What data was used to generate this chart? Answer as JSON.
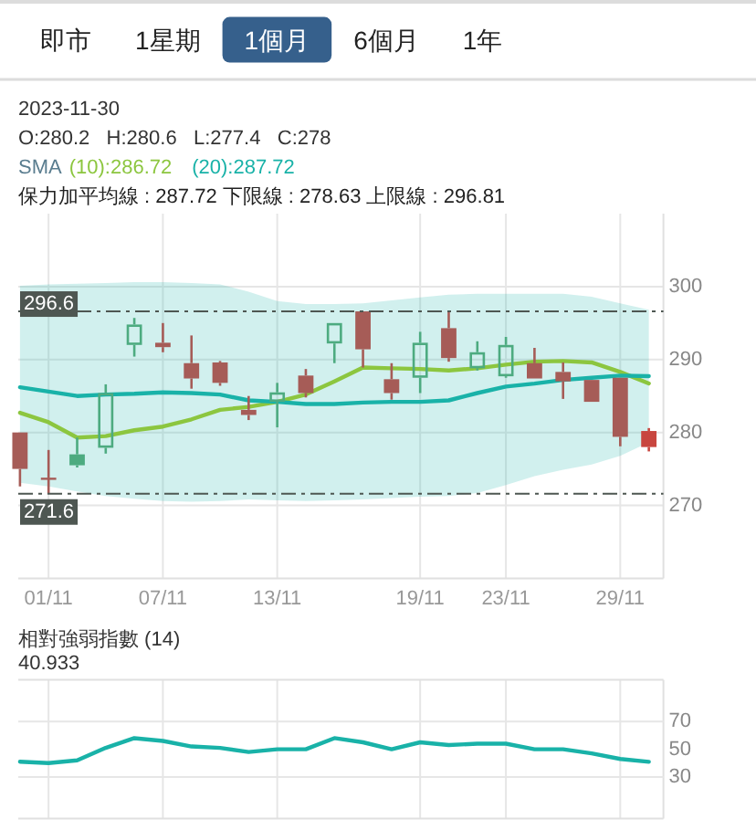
{
  "chart_data": [
    {
      "type": "other",
      "categories": [
        "即市",
        "1星期",
        "1個月",
        "6個月",
        "1年"
      ],
      "colors": [
        null,
        null,
        "#36608c",
        null,
        null
      ]
    },
    {
      "type": "candlestick",
      "title": "2023-11-30",
      "subtitle": "O:280.2   H:280.6   L:277.4   C:278",
      "legend": "top left",
      "legend_title": "SMA",
      "annotations": [
        "保力加平均線 : 287.72 下限線 : 278.63 上限線 : 296.81"
      ],
      "categories": [
        null,
        "01/11",
        null,
        null,
        null,
        "07/11",
        null,
        null,
        null,
        "13/11",
        null,
        null,
        null,
        null,
        "19/11",
        null,
        null,
        "23/11",
        null,
        null,
        null,
        "29/11",
        null
      ],
      "ohlc": [
        [
          280.0,
          280.0,
          272.6,
          275.0
        ],
        [
          273.8,
          277.6,
          271.6,
          273.8
        ],
        [
          277.0,
          279.3,
          275.2,
          275.5
        ],
        [
          277.9,
          286.6,
          277.1,
          285.4
        ],
        [
          292.0,
          295.7,
          290.4,
          294.8
        ],
        [
          291.7,
          295.0,
          291.0,
          292.3
        ],
        [
          289.5,
          293.3,
          286.0,
          287.4
        ],
        [
          289.6,
          289.8,
          286.4,
          286.8
        ],
        [
          283.1,
          285.0,
          281.7,
          282.4
        ],
        [
          284.2,
          286.8,
          280.7,
          285.5
        ],
        [
          287.8,
          288.7,
          284.8,
          285.4
        ],
        [
          292.2,
          295.0,
          289.5,
          295.0
        ],
        [
          296.6,
          296.6,
          288.9,
          291.4
        ],
        [
          287.3,
          289.5,
          284.5,
          285.4
        ],
        [
          287.5,
          293.8,
          285.4,
          292.3
        ],
        [
          294.3,
          296.5,
          289.7,
          290.2
        ],
        [
          288.8,
          292.5,
          288.5,
          291.0
        ],
        [
          287.7,
          293.1,
          287.5,
          292.0
        ],
        [
          289.5,
          291.6,
          287.4,
          287.4
        ],
        [
          288.3,
          289.6,
          284.6,
          287.0
        ],
        [
          287.2,
          287.2,
          284.2,
          284.2
        ],
        [
          287.5,
          287.5,
          278.1,
          279.4
        ],
        [
          280.2,
          280.6,
          277.4,
          278
        ]
      ],
      "colors": [
        "#a65c57",
        "#a65c57",
        "#4dab80",
        "#4dab80",
        "#4dab80",
        "#a65c57",
        "#a65c57",
        "#a65c57",
        "#a65c57",
        "#4dab80",
        "#a65c57",
        "#4dab80",
        "#a65c57",
        "#a65c57",
        "#4dab80",
        "#a65c57",
        "#4dab80",
        "#4dab80",
        "#a65c57",
        "#a65c57",
        "#a65c57",
        "#a65c57",
        "#c8463f"
      ],
      "series": [
        {
          "name": "(10):286.72",
          "type": "line",
          "color": "#8cc63f",
          "values": [
            282.7,
            281.4,
            279.3,
            279.5,
            280.3,
            280.8,
            281.8,
            283.1,
            283.5,
            284.2,
            285.2,
            287.0,
            288.9,
            288.8,
            288.7,
            288.5,
            288.8,
            289.3,
            289.7,
            289.8,
            289.6,
            288.3,
            286.72
          ]
        },
        {
          "name": "(20):287.72",
          "type": "line",
          "color": "#19b2a8",
          "values": [
            286.2,
            285.6,
            285.0,
            285.2,
            285.3,
            285.5,
            285.4,
            285.2,
            284.4,
            284.2,
            283.9,
            283.9,
            284.1,
            284.2,
            284.2,
            284.4,
            285.4,
            286.3,
            286.7,
            287.2,
            287.5,
            287.8,
            287.72
          ],
          "upper": [
            300.1,
            300.3,
            300.4,
            300.5,
            300.6,
            300.6,
            300.5,
            300.3,
            299.3,
            298.0,
            297.6,
            297.6,
            297.7,
            298.1,
            298.5,
            298.9,
            299.0,
            299.0,
            299.0,
            299.0,
            298.6,
            297.7,
            296.81
          ],
          "lower": [
            273.1,
            272.6,
            271.9,
            271.3,
            270.9,
            270.6,
            270.5,
            270.6,
            270.8,
            270.7,
            270.6,
            270.7,
            270.8,
            271.0,
            271.2,
            271.3,
            271.7,
            272.8,
            274.0,
            274.9,
            275.6,
            276.8,
            278.63
          ]
        }
      ],
      "ylim": [
        260,
        310
      ],
      "yticks": [
        270,
        280,
        290,
        300
      ],
      "grid": true,
      "ref_lines": [
        {
          "axis": "y",
          "value": 296.6,
          "label": "296.6",
          "color": "#4e5752",
          "line_style": "dashdot"
        },
        {
          "axis": "y",
          "value": 271.6,
          "label": "271.6",
          "color": "#4e5752",
          "line_style": "dashdot"
        }
      ]
    },
    {
      "type": "line",
      "title": "相對強弱指數 (14)",
      "subtitle": "40.933",
      "categories": [
        null,
        null,
        null,
        null,
        null,
        null,
        null,
        null,
        null,
        null,
        null,
        null,
        null,
        null,
        null,
        null,
        null,
        null,
        null,
        null,
        null,
        null,
        null
      ],
      "series": [
        {
          "color": "#19b2a8",
          "values": [
            41,
            40,
            42,
            51,
            58,
            56,
            52,
            51,
            48,
            50,
            50,
            58,
            55,
            50,
            55,
            53,
            54,
            54,
            50,
            50,
            47,
            43,
            40.933
          ]
        }
      ],
      "ylim": [
        0,
        100
      ],
      "yticks": [
        30,
        50,
        70
      ],
      "grid": "x",
      "ref_lines": [
        {
          "axis": "y",
          "value": 70,
          "color": "#e6e6e6"
        },
        {
          "axis": "y",
          "value": 30,
          "color": "#e6e6e6"
        }
      ]
    }
  ]
}
